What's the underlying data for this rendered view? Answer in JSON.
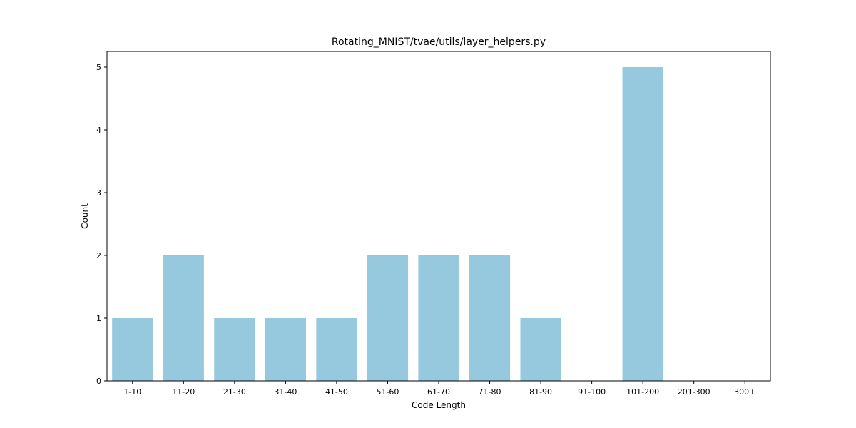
{
  "chart_data": {
    "type": "bar",
    "title": "Rotating_MNIST/tvae/utils/layer_helpers.py",
    "xlabel": "Code Length",
    "ylabel": "Count",
    "categories": [
      "1-10",
      "11-20",
      "21-30",
      "31-40",
      "41-50",
      "51-60",
      "61-70",
      "71-80",
      "81-90",
      "91-100",
      "101-200",
      "201-300",
      "300+"
    ],
    "values": [
      1,
      2,
      1,
      1,
      1,
      2,
      2,
      2,
      1,
      0,
      5,
      0,
      0
    ],
    "yticks": [
      0,
      1,
      2,
      3,
      4,
      5
    ],
    "ylim": [
      0,
      5.25
    ],
    "grid": false,
    "bar_color": "#96c9de"
  }
}
